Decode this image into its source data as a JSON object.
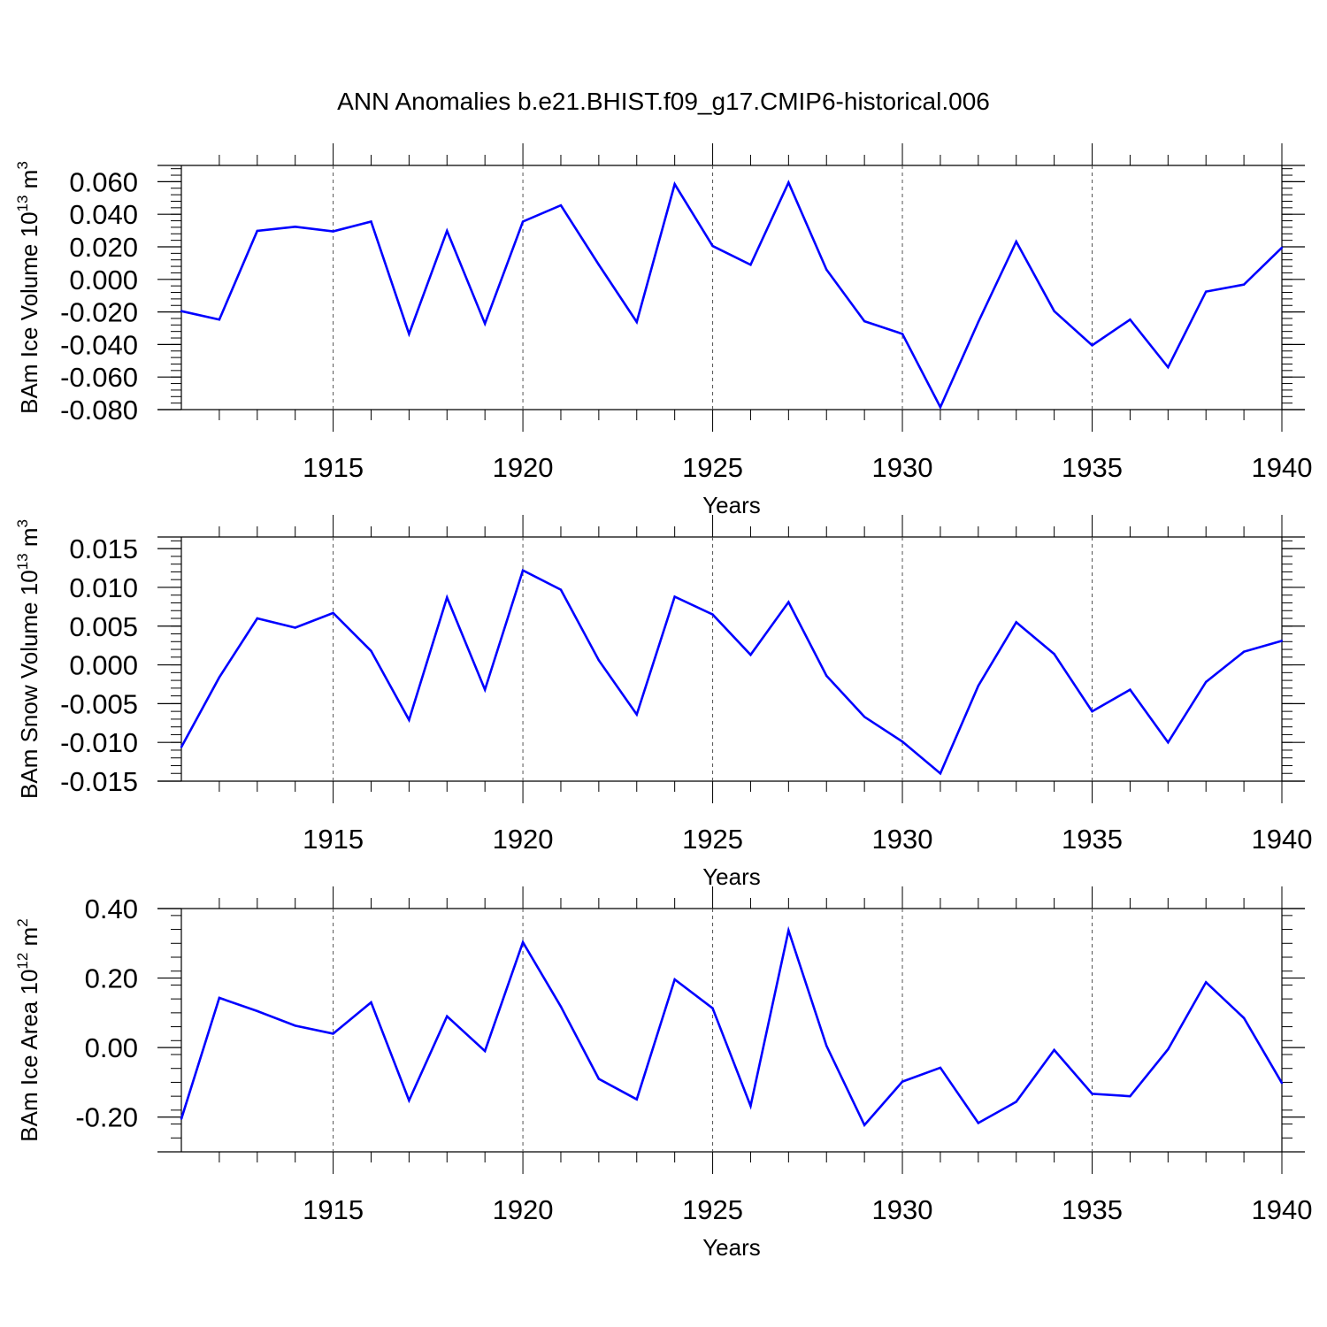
{
  "chart_data": {
    "type": "line",
    "title": "ANN Anomalies b.e21.BHIST.f09_g17.CMIP6-historical.006",
    "x": [
      1911,
      1912,
      1913,
      1914,
      1915,
      1916,
      1917,
      1918,
      1919,
      1920,
      1921,
      1922,
      1923,
      1924,
      1925,
      1926,
      1927,
      1928,
      1929,
      1930,
      1931,
      1932,
      1933,
      1934,
      1935,
      1936,
      1937,
      1938,
      1939,
      1940
    ],
    "xlabel": "Years",
    "xlim": [
      1911,
      1940
    ],
    "xticks": [
      "1915",
      "1920",
      "1925",
      "1930",
      "1935",
      "1940"
    ],
    "line_color": "#0000ff",
    "panels": [
      {
        "ylabel_prefix": "BAm Ice Volume 10",
        "ylabel_exp": "13",
        "ylabel_suffix": " m",
        "ylabel_unit_exp": "3",
        "ylim": [
          -0.08,
          0.07
        ],
        "yticks": [
          "0.060",
          "0.040",
          "0.020",
          "0.000",
          "-0.020",
          "-0.040",
          "-0.060",
          "-0.080"
        ],
        "ytick_values": [
          0.06,
          0.04,
          0.02,
          0.0,
          -0.02,
          -0.04,
          -0.06,
          -0.08
        ],
        "values": [
          -0.0195,
          -0.0247,
          0.0298,
          0.0323,
          0.0295,
          0.0355,
          -0.0335,
          0.0298,
          -0.0272,
          0.0355,
          0.0455,
          0.009,
          -0.0262,
          0.0585,
          0.0205,
          0.009,
          0.0595,
          0.006,
          -0.0257,
          -0.0335,
          -0.0785,
          -0.0262,
          0.0232,
          -0.0195,
          -0.0405,
          -0.0247,
          -0.054,
          -0.0075,
          -0.0032,
          0.0195
        ]
      },
      {
        "ylabel_prefix": "BAm Snow Volume 10",
        "ylabel_exp": "13",
        "ylabel_suffix": " m",
        "ylabel_unit_exp": "3",
        "ylim": [
          -0.015,
          0.0165
        ],
        "yticks": [
          "0.015",
          "0.010",
          "0.005",
          "0.000",
          "-0.005",
          "-0.010",
          "-0.015"
        ],
        "ytick_values": [
          0.015,
          0.01,
          0.005,
          0.0,
          -0.005,
          -0.01,
          -0.015
        ],
        "values": [
          -0.0106,
          -0.0016,
          0.006,
          0.0048,
          0.0067,
          0.0018,
          -0.0071,
          0.0087,
          -0.0032,
          0.0122,
          0.0097,
          0.0006,
          -0.0064,
          0.0088,
          0.0065,
          0.0013,
          0.0081,
          -0.0014,
          -0.0067,
          -0.0099,
          -0.014,
          -0.0027,
          0.0055,
          0.0014,
          -0.006,
          -0.0032,
          -0.01,
          -0.0022,
          0.0017,
          0.0031
        ]
      },
      {
        "ylabel_prefix": "BAm Ice Area 10",
        "ylabel_exp": "12",
        "ylabel_suffix": " m",
        "ylabel_unit_exp": "2",
        "ylim": [
          -0.3,
          0.4
        ],
        "yticks": [
          "0.40",
          "0.20",
          "0.00",
          "-0.20"
        ],
        "ytick_values": [
          0.4,
          0.2,
          0.0,
          -0.2
        ],
        "values": [
          -0.205,
          0.143,
          0.105,
          0.063,
          0.04,
          0.13,
          -0.152,
          0.09,
          -0.01,
          0.303,
          0.118,
          -0.09,
          -0.149,
          0.196,
          0.113,
          -0.168,
          0.337,
          0.005,
          -0.223,
          -0.098,
          -0.058,
          -0.217,
          -0.156,
          -0.007,
          -0.133,
          -0.14,
          -0.005,
          0.188,
          0.085,
          -0.102
        ]
      }
    ]
  }
}
